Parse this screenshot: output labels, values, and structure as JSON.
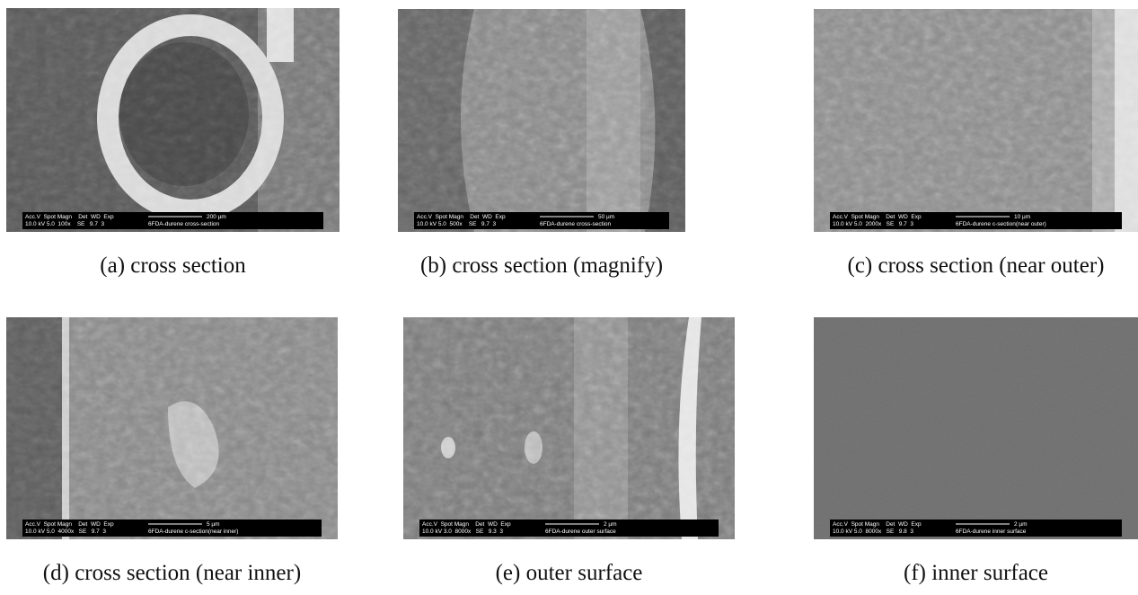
{
  "panels": [
    {
      "caption": "(a) cross section",
      "info_header": "Acc.V  Spot Magn    Det  WD  Exp",
      "info_settings": "10.0 kV 5.0  100x    SE   9.7  3",
      "scale_bar": "200 µm",
      "sample": "6FDA-durene cross-section"
    },
    {
      "caption": "(b) cross section (magnify)",
      "info_header": "Acc.V  Spot Magn    Det  WD  Exp",
      "info_settings": "10.0 kV 5.0  500x    SE   9.7  3",
      "scale_bar": "50 µm",
      "sample": "6FDA-durene cross-section"
    },
    {
      "caption": "(c) cross section (near outer)",
      "info_header": "Acc.V  Spot Magn    Det  WD  Exp",
      "info_settings": "10.0 kV 5.0  2000x   SE   9.7  3",
      "scale_bar": "10 µm",
      "sample": "6FDA-durene c-section(near outer)"
    },
    {
      "caption": "(d) cross section (near inner)",
      "info_header": "Acc.V  Spot Magn    Det  WD  Exp",
      "info_settings": "10.0 kV 5.0  4000x   SE   9.7  3",
      "scale_bar": "5 µm",
      "sample": "6FDA-durene c-section(near inner)"
    },
    {
      "caption": "(e) outer surface",
      "info_header": "Acc.V  Spot Magn    Det  WD  Exp",
      "info_settings": "10.0 kV 3.0  8000x   SE   9.3  3",
      "scale_bar": "2 µm",
      "sample": "6FDA-durene outer surface"
    },
    {
      "caption": "(f) inner surface",
      "info_header": "Acc.V  Spot Magn    Det  WD  Exp",
      "info_settings": "10.0 kV 5.0  8000x   SE   9.8  3",
      "scale_bar": "2 µm",
      "sample": "6FDA-durene inner surface"
    }
  ]
}
